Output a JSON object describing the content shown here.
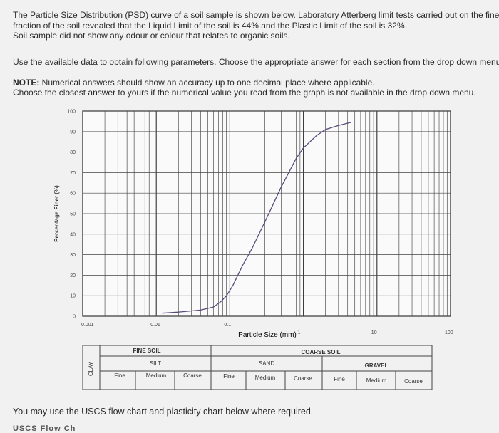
{
  "intro": {
    "line1": "The Particle Size Distribution (PSD) curve of a soil sample is shown below. Laboratory Atterberg limit tests carried out on the fines",
    "line2": "fraction of the soil revealed that the Liquid Limit of the soil is 44% and the Plastic Limit of the soil is 32%.",
    "line3": "Soil sample did not show any odour or colour that relates to organic soils."
  },
  "instructions": "Use the available data to obtain following parameters. Choose the appropriate answer for each section from the drop down menu",
  "note": {
    "label": "NOTE:",
    "line1": " Numerical answers should show an accuracy up to one decimal place where applicable.",
    "line2": "Choose the closest answer to yours if the numerical value you read from the graph is not available in the drop down menu."
  },
  "chart_data": {
    "type": "line",
    "xlabel": "Particle Size (mm)",
    "ylabel": "Percentage Finer (%)",
    "xscale": "log",
    "xlim": [
      0.001,
      100
    ],
    "ylim": [
      0,
      100
    ],
    "x_tick_labels": [
      "0.001",
      "0.01",
      "0.1",
      "1",
      "10",
      "100"
    ],
    "y_tick_labels": [
      "0",
      "10",
      "20",
      "30",
      "40",
      "50",
      "60",
      "70",
      "80",
      "90",
      "100"
    ],
    "grid": true,
    "series": [
      {
        "x": [
          0.012,
          0.02,
          0.04,
          0.06,
          0.075,
          0.09,
          0.11,
          0.15,
          0.2,
          0.3,
          0.5,
          0.8,
          1.0,
          1.5,
          2.0,
          3.0,
          4.5
        ],
        "y": [
          1.5,
          2.0,
          3.0,
          4.5,
          7.0,
          10.0,
          15.0,
          25.0,
          33.0,
          46.0,
          63.0,
          77.0,
          82.0,
          88.0,
          91.0,
          93.0,
          94.5
        ]
      }
    ]
  },
  "classification": {
    "clay": "CLAY",
    "fine_soil": "FINE SOIL",
    "silt": "SILT",
    "coarse_soil": "COARSE SOIL",
    "sand": "SAND",
    "gravel": "GRAVEL",
    "fine": "Fine",
    "medium": "Medium",
    "coarse": "Coarse"
  },
  "footer": "You may use the USCS flow chart and plasticity chart below where required.",
  "cut_off_text": "USCS Flow Ch"
}
